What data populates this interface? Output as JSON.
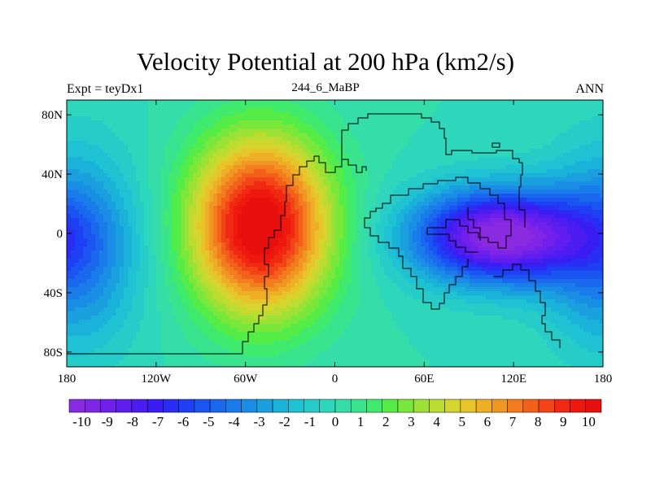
{
  "header": {
    "title": "Velocity Potential at 200 hPa (km2/s)",
    "left": "Expt = teyDx1",
    "center": "244_6_MaBP",
    "right": "ANN"
  },
  "map": {
    "x_ticks": [
      "180",
      "120W",
      "60W",
      "0",
      "60E",
      "120E",
      "180"
    ],
    "x_tick_values": [
      -180,
      -120,
      -60,
      0,
      60,
      120,
      180
    ],
    "y_ticks": [
      "80N",
      "40N",
      "0",
      "40S",
      "80S"
    ],
    "y_tick_values": [
      80,
      40,
      0,
      -40,
      -80
    ],
    "lon_range": [
      -180,
      180
    ],
    "lat_range": [
      -90,
      90
    ],
    "field_blobs": [
      {
        "name": "positive-center-americas",
        "lon": -50,
        "lat": 5,
        "amp": 11.0,
        "sigma_lon": 33,
        "sigma_lat": 42
      },
      {
        "name": "negative-center-indopacific",
        "lon": 110,
        "lat": -2,
        "amp": -10.5,
        "sigma_lon": 40,
        "sigma_lat": 22
      },
      {
        "name": "negative-side-west-pacific",
        "lon": -175,
        "lat": -10,
        "amp": -4.5,
        "sigma_lon": 30,
        "sigma_lat": 45
      }
    ]
  },
  "colorbar": {
    "labels": [
      "-10",
      "-9",
      "-8",
      "-7",
      "-6",
      "-5",
      "-4",
      "-3",
      "-2",
      "-1",
      "0",
      "1",
      "2",
      "3",
      "4",
      "5",
      "6",
      "7",
      "8",
      "9",
      "10"
    ],
    "min": -10.5,
    "max": 10.5,
    "step": 0.5,
    "colors": [
      "#8a2be2",
      "#8025e6",
      "#7020ea",
      "#601eee",
      "#4d1cf0",
      "#3a1df2",
      "#2a2ef4",
      "#1e40f4",
      "#1a55f2",
      "#1a68ee",
      "#1a7cea",
      "#1a8ee4",
      "#1aa0de",
      "#1ab2d8",
      "#1ec2d2",
      "#26cdc8",
      "#2ed6bc",
      "#35dea8",
      "#3ae48e",
      "#40ea6c",
      "#55ec48",
      "#7ae83a",
      "#9ce236",
      "#bcdc32",
      "#d6d42e",
      "#e6c42a",
      "#eeae26",
      "#f09622",
      "#f27c1e",
      "#f2601a",
      "#f24416",
      "#f02a12",
      "#ee180e",
      "#e8100e"
    ]
  }
}
